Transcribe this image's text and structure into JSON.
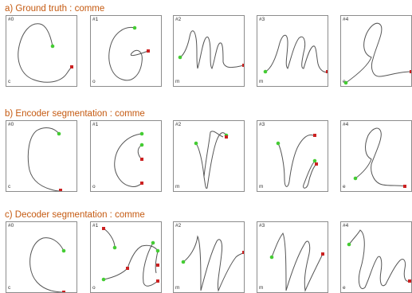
{
  "colors": {
    "title": "#c55a11",
    "stroke": "#555555",
    "start_point": "#44cc33",
    "end_point": "#cc2222",
    "border": "#8c8c8c"
  },
  "sections": [
    {
      "title": "a) Ground truth : comme",
      "panels": [
        {
          "index": "#0",
          "letter": "c"
        },
        {
          "index": "#1",
          "letter": "o"
        },
        {
          "index": "#2",
          "letter": "m"
        },
        {
          "index": "#3",
          "letter": "m"
        },
        {
          "index": "#4",
          "letter": "e"
        }
      ]
    },
    {
      "title": "b) Encoder segmentation : comme",
      "panels": [
        {
          "index": "#0",
          "letter": "c"
        },
        {
          "index": "#1",
          "letter": "o"
        },
        {
          "index": "#2",
          "letter": "m"
        },
        {
          "index": "#3",
          "letter": "m"
        },
        {
          "index": "#4",
          "letter": "e"
        }
      ]
    },
    {
      "title": "c) Decoder segmentation : comme",
      "panels": [
        {
          "index": "#0",
          "letter": "c"
        },
        {
          "index": "#1",
          "letter": "o"
        },
        {
          "index": "#2",
          "letter": "m"
        },
        {
          "index": "#3",
          "letter": "m"
        },
        {
          "index": "#4",
          "letter": "e"
        }
      ]
    }
  ]
}
